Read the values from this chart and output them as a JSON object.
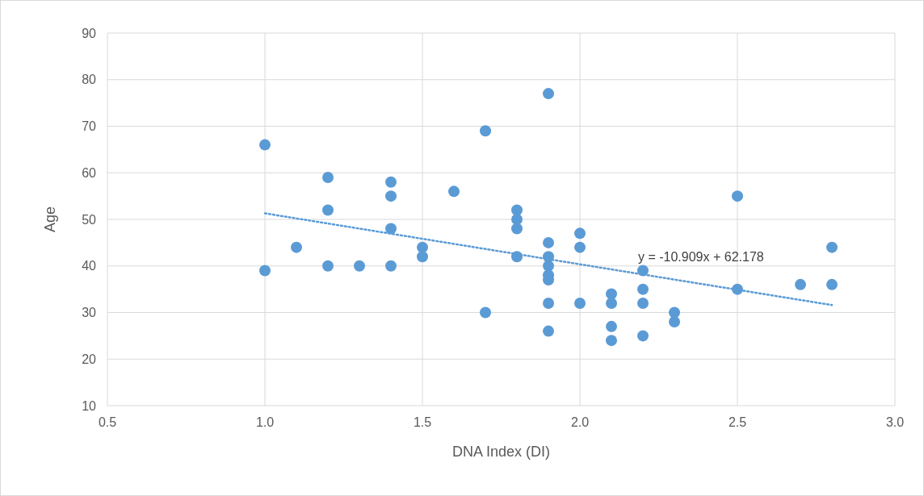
{
  "chart_data": {
    "type": "scatter",
    "xlabel": "DNA Index (DI)",
    "ylabel": "Age",
    "xlim": [
      0.5,
      3.0
    ],
    "xticks": [
      {
        "value": 0.5,
        "label": "0.5"
      },
      {
        "value": 1,
        "label": "1.0"
      },
      {
        "value": 1.5,
        "label": "1.5"
      },
      {
        "value": 2,
        "label": "2.0"
      },
      {
        "value": 2.5,
        "label": "2.5"
      },
      {
        "value": 3,
        "label": "3.0"
      }
    ],
    "ylim": [
      10,
      90
    ],
    "yticks": [
      10,
      20,
      30,
      40,
      50,
      60,
      70,
      80,
      90
    ],
    "grid": true,
    "series": [
      {
        "color": "#5b9bd5",
        "marker": "circle",
        "x": [
          1.0,
          1.0,
          1.1,
          1.2,
          1.2,
          1.2,
          1.3,
          1.4,
          1.4,
          1.4,
          1.4,
          1.5,
          1.5,
          1.6,
          1.7,
          1.7,
          1.8,
          1.8,
          1.8,
          1.8,
          1.9,
          1.9,
          1.9,
          1.9,
          1.9,
          1.9,
          1.9,
          1.9,
          2.0,
          2.0,
          2.0,
          2.1,
          2.1,
          2.1,
          2.1,
          2.2,
          2.2,
          2.2,
          2.2,
          2.3,
          2.3,
          2.5,
          2.5,
          2.7,
          2.8,
          2.8
        ],
        "values": [
          66,
          39,
          44,
          59,
          52,
          40,
          40,
          58,
          55,
          48,
          40,
          44,
          42,
          56,
          69,
          30,
          52,
          50,
          48,
          42,
          77,
          45,
          42,
          40,
          38,
          37,
          32,
          26,
          47,
          44,
          32,
          34,
          32,
          27,
          24,
          39,
          35,
          32,
          25,
          30,
          28,
          55,
          35,
          36,
          44,
          36
        ]
      },
      {
        "type": "line",
        "color": "#5b9bd5",
        "marker": "none",
        "line_style": "dotted",
        "x": [
          1.0,
          2.8
        ],
        "values": [
          51.3,
          31.6
        ]
      }
    ],
    "annotations": [
      "y = -10.909x + 62.178"
    ]
  }
}
